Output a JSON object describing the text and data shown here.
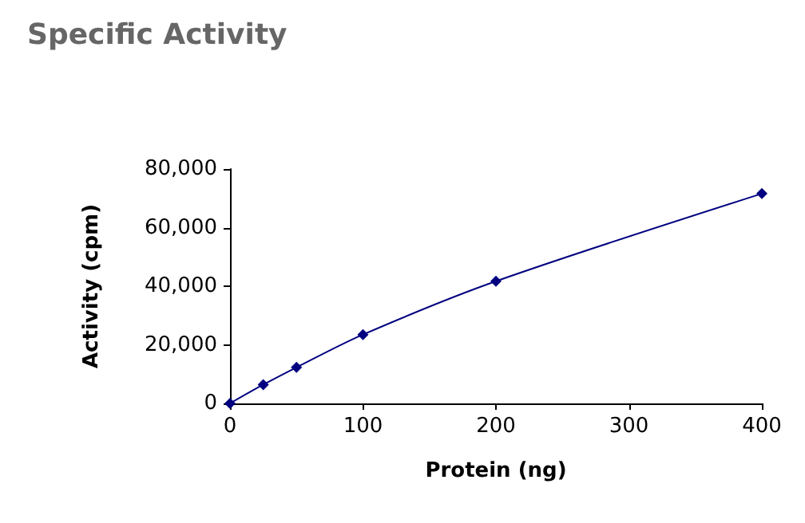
{
  "chart_data": {
    "type": "line",
    "title": "Specific Activity",
    "xlabel": "Protein (ng)",
    "ylabel": "Activity (cpm)",
    "x": [
      0,
      25,
      50,
      100,
      200,
      400
    ],
    "series": [
      {
        "color": "#000080",
        "values": [
          0,
          6400,
          12300,
          23500,
          41700,
          71600
        ]
      }
    ],
    "xlim": [
      0,
      400
    ],
    "xticks": [
      0,
      100,
      200,
      300,
      400
    ],
    "ylim": [
      0,
      80000
    ],
    "yticks": [
      {
        "value": 0,
        "label": "0"
      },
      {
        "value": 20000,
        "label": "20,000"
      },
      {
        "value": 40000,
        "label": "40,000"
      },
      {
        "value": 60000,
        "label": "60,000"
      },
      {
        "value": 80000,
        "label": "80,000"
      }
    ],
    "grid": false,
    "marker": "diamond",
    "line_style": "solid"
  }
}
